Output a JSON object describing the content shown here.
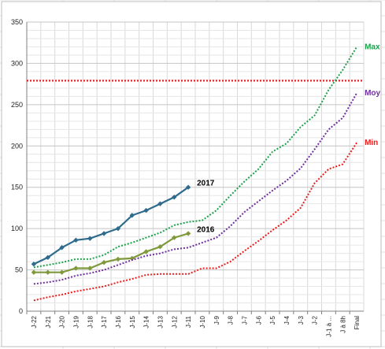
{
  "chart_data": {
    "type": "line",
    "categories": [
      "J-22",
      "J-21",
      "J-20",
      "J-19",
      "J-18",
      "J-17",
      "J-16",
      "J-15",
      "J-14",
      "J-13",
      "J-12",
      "J-11",
      "J-10",
      "J-9",
      "J-8",
      "J-7",
      "J-6",
      "J-5",
      "J-4",
      "J-3",
      "J-2",
      "J-1 à ...",
      "J à 8h",
      "Final"
    ],
    "ylim": [
      0,
      350
    ],
    "yticks": [
      0,
      50,
      100,
      150,
      200,
      250,
      300,
      350
    ],
    "grid": true,
    "legend": "none",
    "series": [
      {
        "name": "2017",
        "style": "solid",
        "marker": "diamond",
        "color": "#2e6b8c",
        "values": [
          57,
          65,
          77,
          86,
          88,
          94,
          100,
          116,
          122,
          130,
          138,
          150,
          null,
          null,
          null,
          null,
          null,
          null,
          null,
          null,
          null,
          null,
          null,
          null
        ]
      },
      {
        "name": "2016",
        "style": "solid",
        "marker": "diamond",
        "color": "#7f9a3c",
        "values": [
          47,
          47,
          47,
          52,
          52,
          59,
          63,
          64,
          72,
          78,
          89,
          94,
          null,
          null,
          null,
          null,
          null,
          null,
          null,
          null,
          null,
          null,
          null,
          null
        ]
      },
      {
        "name": "Max",
        "style": "dotted",
        "color": "#1aa34a",
        "values": [
          53,
          56,
          59,
          63,
          63,
          68,
          78,
          83,
          89,
          95,
          104,
          108,
          110,
          122,
          140,
          157,
          172,
          193,
          203,
          223,
          237,
          268,
          292,
          320
        ]
      },
      {
        "name": "Moy",
        "style": "dotted",
        "color": "#7030a0",
        "values": [
          33,
          35,
          38,
          43,
          46,
          50,
          56,
          62,
          67,
          70,
          75,
          77,
          83,
          89,
          103,
          120,
          133,
          146,
          158,
          173,
          196,
          220,
          234,
          264
        ]
      },
      {
        "name": "Min",
        "style": "dotted",
        "color": "#ee1c1c",
        "values": [
          13,
          17,
          20,
          24,
          27,
          30,
          35,
          39,
          44,
          45,
          45,
          45,
          52,
          52,
          60,
          73,
          85,
          98,
          110,
          125,
          155,
          172,
          178,
          204
        ]
      }
    ],
    "reference_line": {
      "value": 279,
      "style": "dotted",
      "color": "#ee1c1c"
    },
    "labels": [
      "2017",
      "2016",
      "Max",
      "Moy",
      "Min"
    ]
  }
}
